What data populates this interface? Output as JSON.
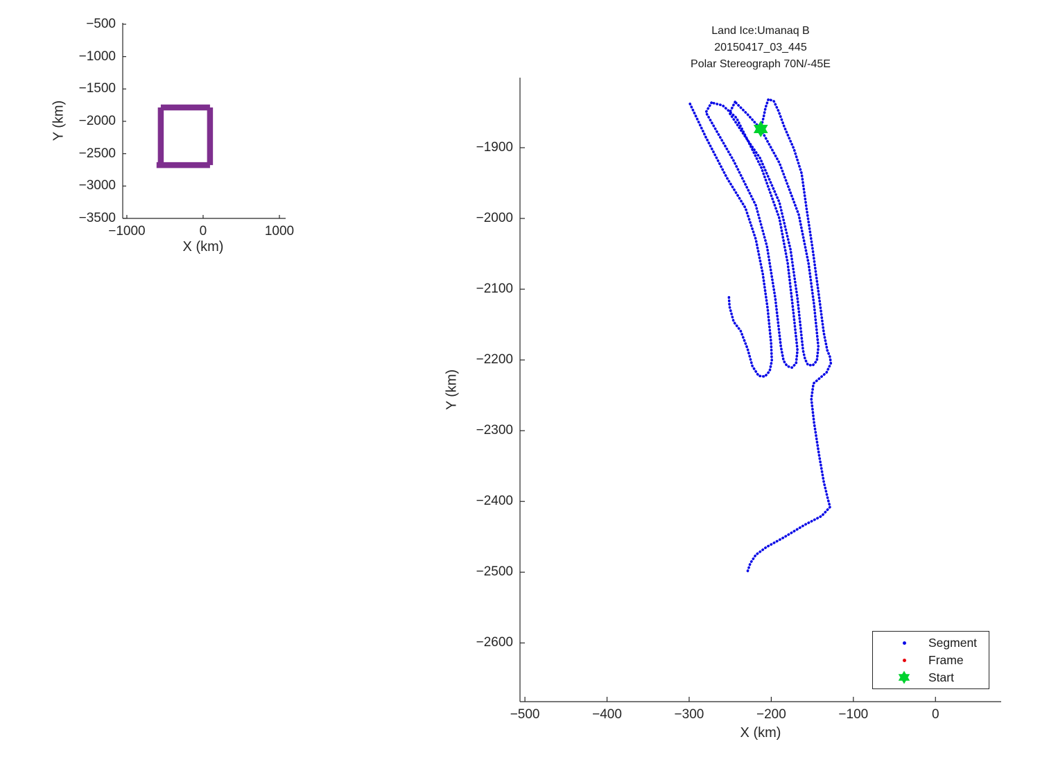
{
  "figure": {
    "background": "#ffffff"
  },
  "chart_data": {
    "inset": {
      "type": "line",
      "xlabel": "X (km)",
      "ylabel": "Y (km)",
      "xlim": [
        -1054,
        1082
      ],
      "ylim": [
        -3500,
        -479
      ],
      "xticks": [
        -1000,
        0,
        1000
      ],
      "yticks": [
        -500,
        -1000,
        -1500,
        -2000,
        -2500,
        -3000,
        -3500
      ],
      "grid": false,
      "series": [
        {
          "name": "flight-footprint-box",
          "color": "#7E2F8E",
          "style": "solid",
          "width": 8.5,
          "paths": [
            [
              [
                -555,
                -1786
              ],
              [
                90,
                -1786
              ]
            ],
            [
              [
                90,
                -1786
              ],
              [
                90,
                -2676
              ]
            ],
            [
              [
                -610,
                -2676
              ],
              [
                90,
                -2676
              ]
            ],
            [
              [
                -555,
                -1786
              ],
              [
                -555,
                -2697
              ]
            ]
          ]
        }
      ]
    },
    "main": {
      "type": "scatter",
      "title_lines": [
        "Land Ice:Umanaq B",
        "20150417_03_445",
        "Polar Stereograph 70N/-45E"
      ],
      "xlabel": "X (km)",
      "ylabel": "Y (km)",
      "xlim": [
        -506,
        80
      ],
      "ylim": [
        -2683,
        -1801
      ],
      "xticks": [
        -500,
        -400,
        -300,
        -200,
        -100,
        0
      ],
      "yticks": [
        -1900,
        -2000,
        -2100,
        -2200,
        -2300,
        -2400,
        -2500,
        -2600
      ],
      "grid": false,
      "legend": {
        "position": "southeast",
        "entries": [
          "Segment",
          "Frame",
          "Start"
        ]
      },
      "series": [
        {
          "name": "Segment",
          "color": "#0a0ae6",
          "style": "dotted",
          "width": 3.6,
          "paths": [
            [
              [
                -299,
                -1838
              ],
              [
                -279.6,
                -1885.3
              ],
              [
                -254.2,
                -1942.2
              ],
              [
                -231.4,
                -1985.3
              ],
              [
                -218.8,
                -2029.4
              ],
              [
                -210.3,
                -2078.4
              ],
              [
                -204.4,
                -2127.5
              ],
              [
                -200.2,
                -2176.5
              ],
              [
                -199.3,
                -2201
              ],
              [
                -201.9,
                -2215.7
              ],
              [
                -207.8,
                -2223.5
              ],
              [
                -215.4,
                -2222.5
              ],
              [
                -223,
                -2208.8
              ],
              [
                -228.9,
                -2184.3
              ],
              [
                -237.3,
                -2158.8
              ],
              [
                -245.8,
                -2146.1
              ],
              [
                -250.8,
                -2124.5
              ],
              [
                -251.7,
                -2108.8
              ]
            ],
            [
              [
                -272.8,
                -1836.3
              ],
              [
                -279.6,
                -1850
              ],
              [
                -245.8,
                -1918.6
              ],
              [
                -218.8,
                -1981.4
              ],
              [
                -205.2,
                -2039.2
              ],
              [
                -195.1,
                -2112.7
              ],
              [
                -188.3,
                -2181.4
              ],
              [
                -185,
                -2201
              ],
              [
                -180.7,
                -2208.8
              ],
              [
                -174.8,
                -2210.8
              ],
              [
                -169.8,
                -2204.9
              ],
              [
                -168.1,
                -2186.3
              ],
              [
                -173.1,
                -2132.4
              ],
              [
                -179.9,
                -2063.7
              ],
              [
                -190,
                -2000
              ],
              [
                -212,
                -1928.4
              ],
              [
                -242.4,
                -1857.8
              ],
              [
                -259.3,
                -1840.2
              ],
              [
                -272.8,
                -1836.3
              ]
            ],
            [
              [
                -244.1,
                -1835.3
              ],
              [
                -250.8,
                -1851
              ],
              [
                -232.3,
                -1883.3
              ],
              [
                -213.7,
                -1914.7
              ],
              [
                -190,
                -1977.5
              ],
              [
                -176.5,
                -2044.1
              ],
              [
                -168.1,
                -2112.7
              ],
              [
                -161.3,
                -2186.3
              ],
              [
                -158.8,
                -2199
              ],
              [
                -155.4,
                -2206.9
              ],
              [
                -149.5,
                -2207.8
              ],
              [
                -144.4,
                -2201
              ],
              [
                -142.7,
                -2181.4
              ],
              [
                -147.8,
                -2122.5
              ],
              [
                -154.6,
                -2063.7
              ],
              [
                -166.4,
                -1995.1
              ],
              [
                -190,
                -1921.6
              ],
              [
                -212.8,
                -1873.5
              ],
              [
                -228.9,
                -1852.9
              ],
              [
                -244.1,
                -1835.3
              ]
            ],
            [
              [
                -212.8,
                -1873.5
              ],
              [
                -209.5,
                -1857.8
              ],
              [
                -206.9,
                -1843.1
              ],
              [
                -203.5,
                -1831.4
              ],
              [
                -196.8,
                -1834.3
              ],
              [
                -190.9,
                -1849
              ],
              [
                -184.1,
                -1870.6
              ],
              [
                -172.3,
                -1902
              ],
              [
                -163,
                -1936.3
              ],
              [
                -157.1,
                -1985.3
              ],
              [
                -149.5,
                -2044.1
              ],
              [
                -142.7,
                -2102.9
              ],
              [
                -136,
                -2161.8
              ],
              [
                -131.8,
                -2186.3
              ],
              [
                -128.4,
                -2196.1
              ],
              [
                -127.5,
                -2204.9
              ],
              [
                -132.6,
                -2217.6
              ],
              [
                -142.7,
                -2227.5
              ],
              [
                -148.6,
                -2233.3
              ],
              [
                -151.2,
                -2254.9
              ],
              [
                -147.8,
                -2289.2
              ],
              [
                -141.9,
                -2333.3
              ],
              [
                -136,
                -2372.5
              ],
              [
                -130.9,
                -2397.1
              ],
              [
                -128.4,
                -2407.8
              ],
              [
                -138.5,
                -2420.6
              ],
              [
                -159.6,
                -2433.3
              ],
              [
                -185,
                -2451
              ],
              [
                -206.1,
                -2464.7
              ],
              [
                -218.8,
                -2475.5
              ],
              [
                -225.5,
                -2487.3
              ],
              [
                -229.7,
                -2502
              ]
            ]
          ]
        },
        {
          "name": "Frame",
          "color": "#e8000b",
          "style": "dotted",
          "width": 3.6,
          "paths": []
        },
        {
          "name": "Start",
          "color": "#00d22e",
          "marker": "hexagram",
          "size": 12,
          "point": [
            -212.8,
            -1873.5
          ]
        }
      ]
    }
  }
}
